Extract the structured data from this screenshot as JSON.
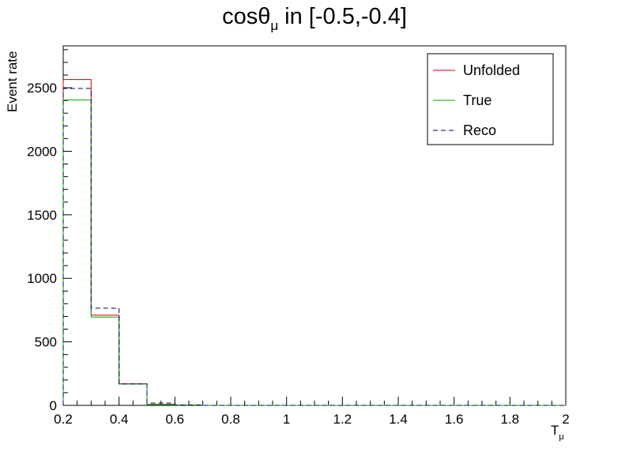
{
  "chart_data": {
    "type": "histogram",
    "title_main": "cosθ",
    "title_sub": "μ",
    "title_rest": " in [-0.5,-0.4]",
    "xlabel_main": "T",
    "xlabel_sub": "μ",
    "ylabel": "Event rate",
    "xlim": [
      0.2,
      2.0
    ],
    "ylim": [
      0,
      2830
    ],
    "x_ticks": [
      "0.2",
      "0.4",
      "0.6",
      "0.8",
      "1",
      "1.2",
      "1.4",
      "1.6",
      "1.8",
      "2"
    ],
    "y_ticks": [
      "0",
      "500",
      "1000",
      "1500",
      "2000",
      "2500"
    ],
    "bin_edges": [
      0.2,
      0.3,
      0.4,
      0.5,
      0.6,
      0.7,
      0.8,
      0.9,
      1.0,
      1.1,
      1.2,
      1.3,
      1.4,
      1.5,
      1.6,
      1.7,
      1.8,
      1.9,
      2.0
    ],
    "series": [
      {
        "name": "Unfolded",
        "color": "#cc0000",
        "style": "solid",
        "values": [
          2565,
          710,
          170,
          8,
          2,
          0,
          0,
          0,
          0,
          0,
          0,
          0,
          0,
          0,
          0,
          0,
          0,
          0
        ]
      },
      {
        "name": "True",
        "color": "#00aa00",
        "style": "solid",
        "values": [
          2405,
          695,
          168,
          6,
          2,
          0,
          0,
          0,
          0,
          0,
          0,
          0,
          0,
          0,
          0,
          0,
          0,
          0
        ]
      },
      {
        "name": "Reco",
        "color": "#000066",
        "style": "dashed",
        "values": [
          2495,
          765,
          168,
          18,
          4,
          0,
          0,
          0,
          0,
          0,
          0,
          0,
          0,
          0,
          0,
          0,
          0,
          0
        ]
      }
    ],
    "legend_position": "top-right",
    "grid": false
  }
}
